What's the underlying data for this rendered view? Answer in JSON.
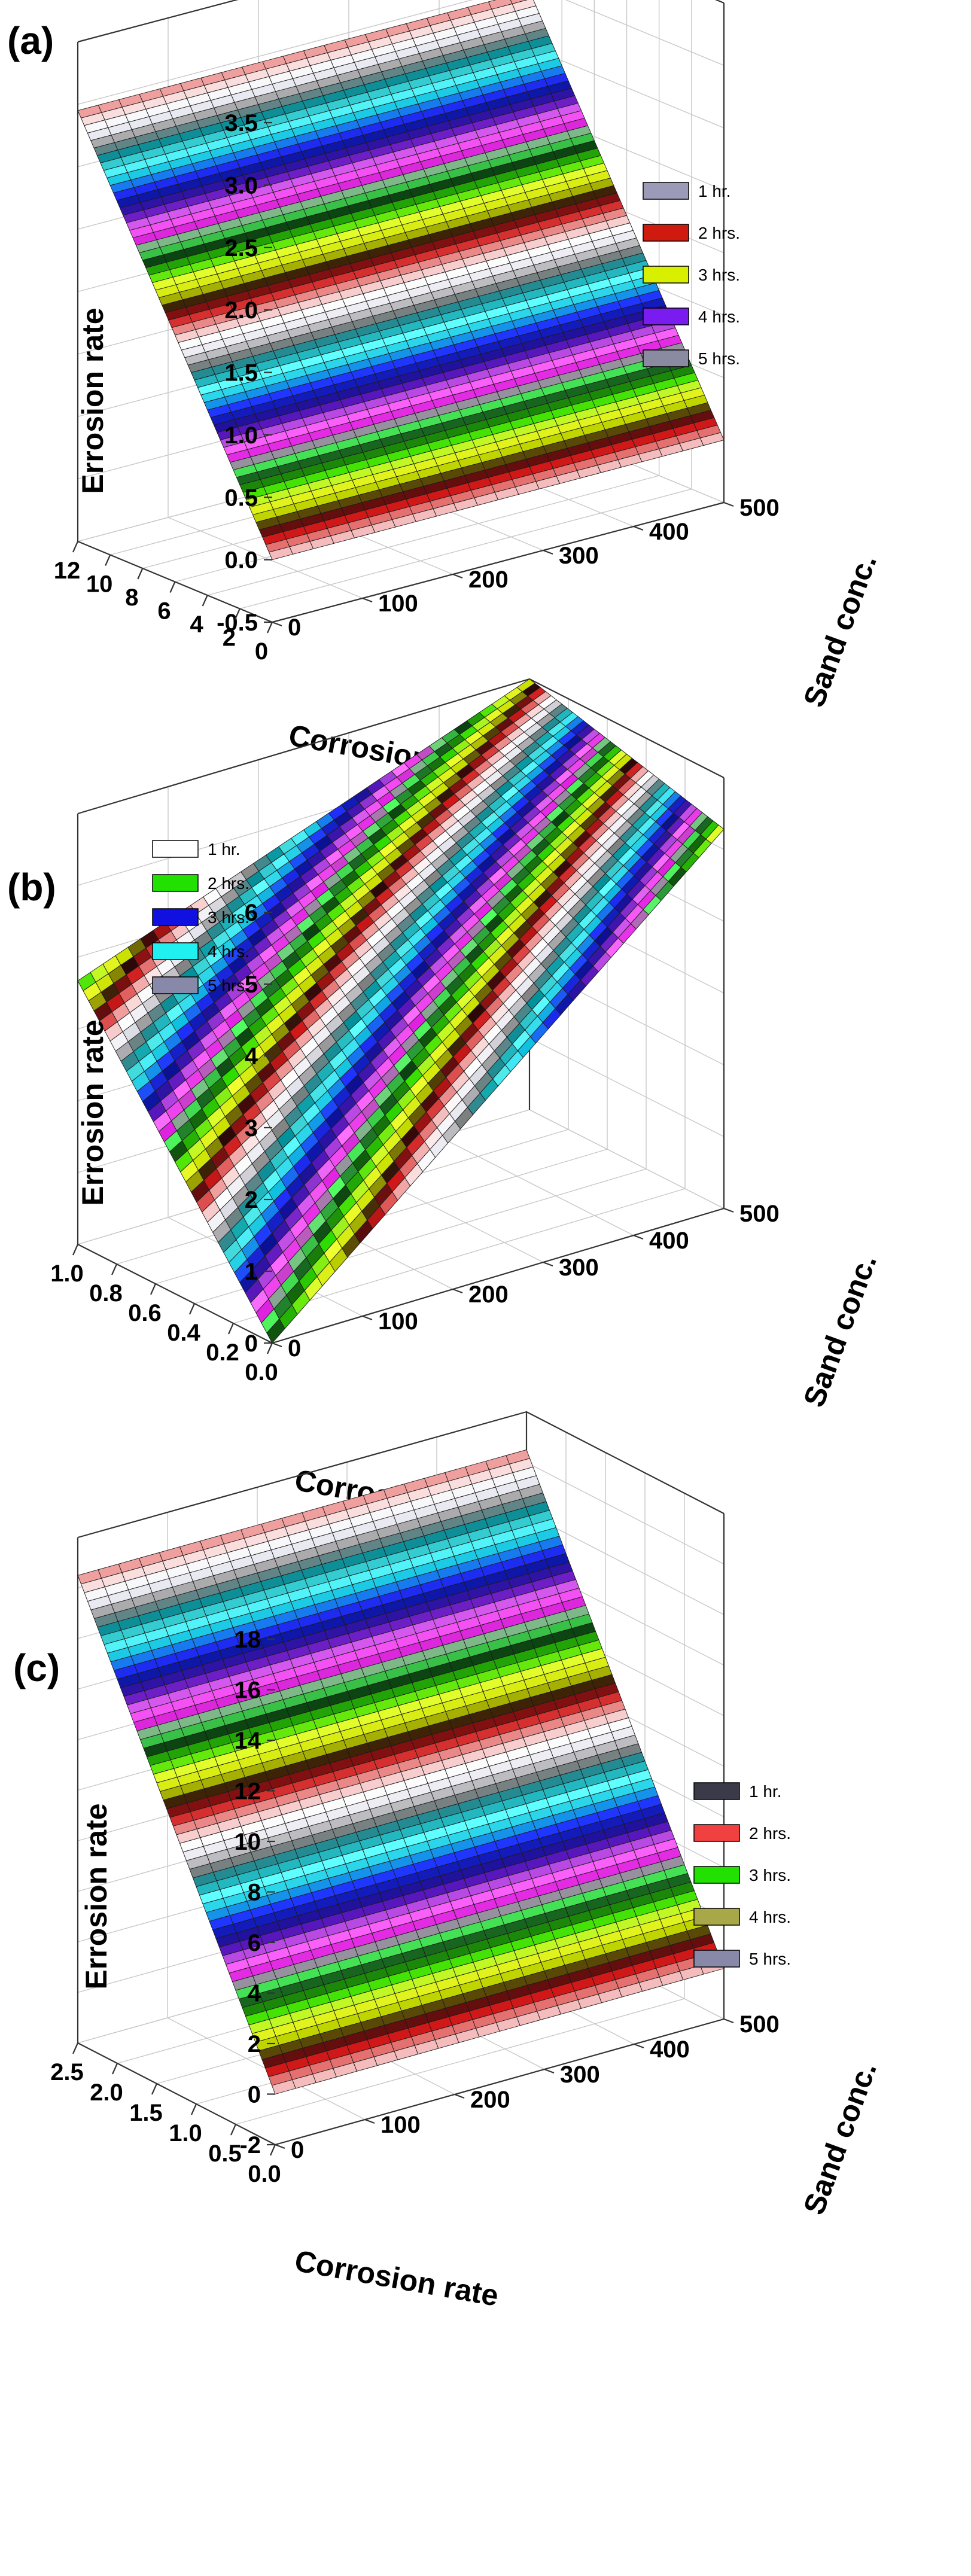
{
  "chart_data": [
    {
      "panel": "(a)",
      "type": "surface3d",
      "zlabel": "Errosion rate",
      "xlabel": "Corrosion rate",
      "ylabel": "Sand conc.",
      "z_ticks": [
        "3.5",
        "3.0",
        "2.5",
        "2.0",
        "1.5",
        "1.0",
        "0.5",
        "0.0",
        "-0.5"
      ],
      "x_ticks": [
        "12",
        "10",
        "8",
        "6",
        "4",
        "2",
        "0"
      ],
      "y_ticks": [
        "500",
        "400",
        "300",
        "200",
        "100",
        "0"
      ],
      "zlim": [
        -0.5,
        3.5
      ],
      "xlim": [
        0,
        13.5
      ],
      "ylim": [
        0,
        500
      ],
      "surface": {
        "z_at_max_corrosion": 2.95,
        "z_at_zero_corrosion": 0.0,
        "sand_effect": "none"
      },
      "legend": [
        "1 hr.",
        "2 hrs.",
        "3 hrs.",
        "4 hrs.",
        "5 hrs."
      ],
      "legend_colors": [
        "#9b9bb8",
        "#d01a10",
        "#d8f000",
        "#7a1cf0",
        "#8a8aa0"
      ],
      "grid": true
    },
    {
      "panel": "(b)",
      "type": "surface3d",
      "zlabel": "Errosion rate",
      "xlabel": "Corrosion rate",
      "ylabel": "Sand conc.",
      "z_ticks": [
        "6",
        "5",
        "4",
        "3",
        "2",
        "1",
        "0"
      ],
      "x_ticks": [
        "1.0",
        "0.8",
        "0.6",
        "0.4",
        "0.2",
        "0.0"
      ],
      "y_ticks": [
        "500",
        "400",
        "300",
        "200",
        "100",
        "0"
      ],
      "zlim": [
        -0.7,
        6
      ],
      "xlim": [
        0,
        1.05
      ],
      "ylim": [
        0,
        500
      ],
      "surface": {
        "z_at_max_corrosion_zero_sand": 3.4,
        "z_at_max_corrosion_max_sand": 6.0,
        "z_at_zero_corrosion_zero_sand": -0.7,
        "z_at_zero_corrosion_max_sand": 5.2
      },
      "legend": [
        "1 hr.",
        "2 hrs.",
        "3 hrs.",
        "4 hrs.",
        "5 hrs."
      ],
      "legend_colors": [
        "#ffffff",
        "#22e000",
        "#1010e0",
        "#20f0f0",
        "#8888a8"
      ],
      "grid": true
    },
    {
      "panel": "(c)",
      "type": "surface3d",
      "zlabel": "Errosion rate",
      "xlabel": "Corrosion rate",
      "ylabel": "Sand conc.",
      "z_ticks": [
        "18",
        "16",
        "14",
        "12",
        "10",
        "8",
        "6",
        "4",
        "2",
        "0",
        "-2"
      ],
      "x_ticks": [
        "2.5",
        "2.0",
        "1.5",
        "1.0",
        "0.5",
        "0.0"
      ],
      "y_ticks": [
        "500",
        "400",
        "300",
        "200",
        "100",
        "0"
      ],
      "zlim": [
        -2,
        18
      ],
      "xlim": [
        0,
        2.85
      ],
      "ylim": [
        0,
        500
      ],
      "surface": {
        "z_at_max_corrosion": 16.5,
        "z_at_zero_corrosion": 0.0,
        "sand_effect": "none"
      },
      "legend": [
        "1 hr.",
        "2 hrs.",
        "3 hrs.",
        "4 hrs.",
        "5 hrs."
      ],
      "legend_colors": [
        "#3a3a48",
        "#f04040",
        "#22e000",
        "#a8a848",
        "#8888a8"
      ],
      "grid": true
    }
  ]
}
